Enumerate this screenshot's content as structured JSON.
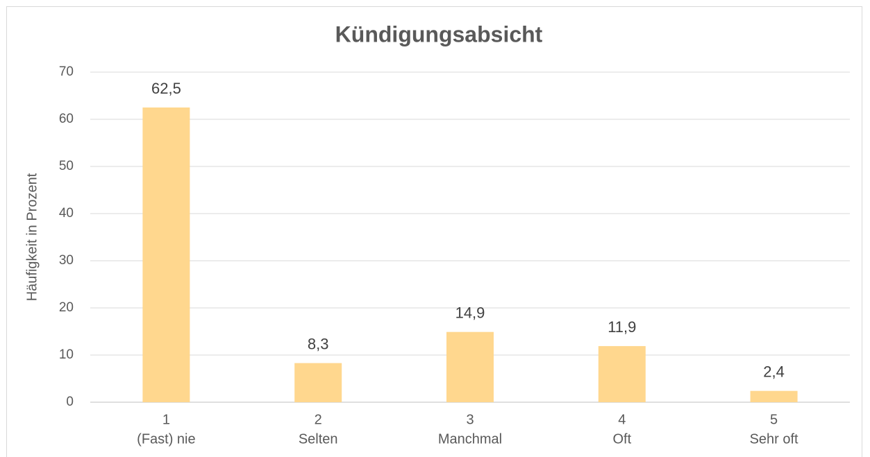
{
  "chart_data": {
    "type": "bar",
    "title": "Kündigungsabsicht",
    "y_label": "Häufigkeit in Prozent",
    "categories": [
      [
        "1",
        "(Fast) nie"
      ],
      [
        "2",
        "Selten"
      ],
      [
        "3",
        "Manchmal"
      ],
      [
        "4",
        "Oft"
      ],
      [
        "5",
        "Sehr oft"
      ]
    ],
    "values": [
      62.5,
      8.3,
      14.9,
      11.9,
      2.4
    ],
    "value_labels": [
      "62,5",
      "8,3",
      "14,9",
      "11,9",
      "2,4"
    ],
    "color": "#ffd78e",
    "ylim": [
      0,
      70
    ],
    "yticks": [
      0,
      10,
      20,
      30,
      40,
      50,
      60,
      70
    ],
    "grid": true
  }
}
